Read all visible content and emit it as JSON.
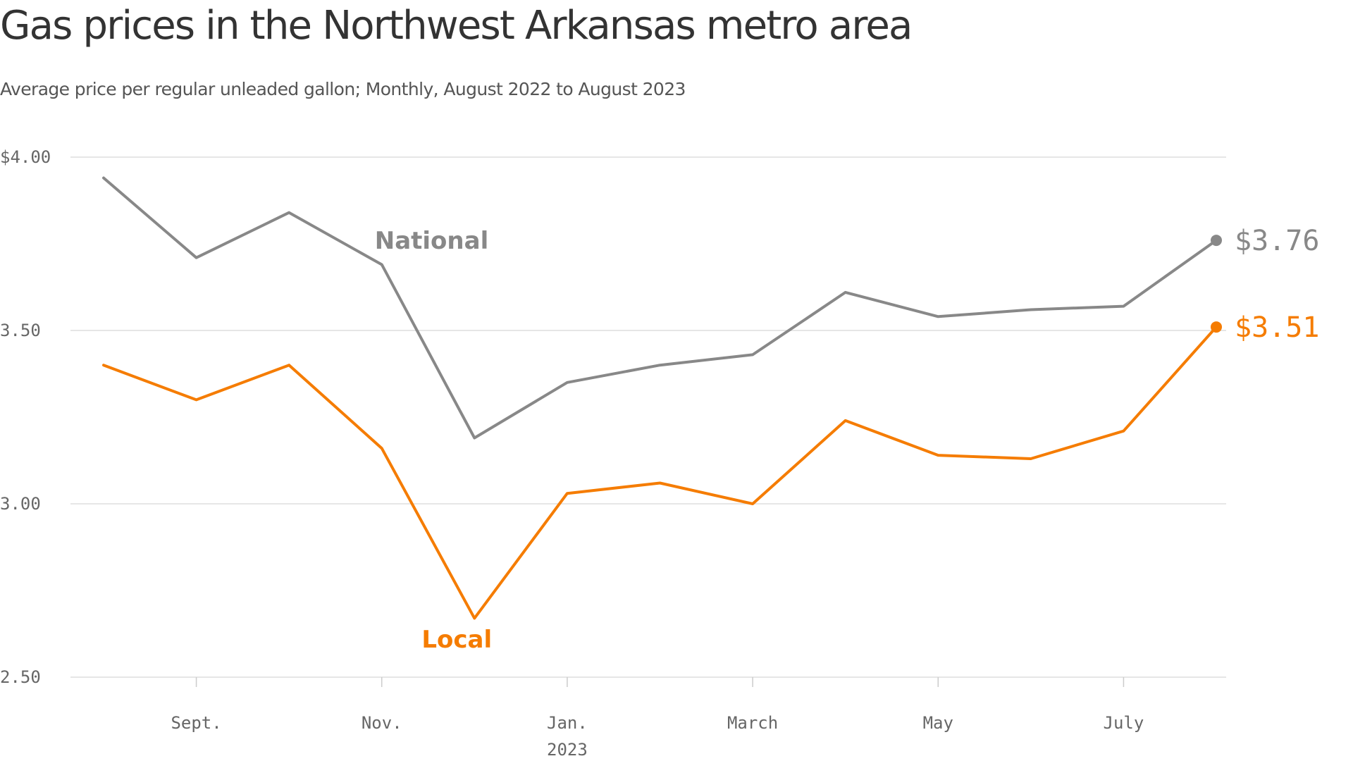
{
  "chart_data": {
    "type": "line",
    "title": "Gas prices in the Northwest Arkansas metro area",
    "subtitle": "Average price per regular unleaded gallon; Monthly, August 2022 to August 2023",
    "x": [
      "2022-08",
      "2022-09",
      "2022-10",
      "2022-11",
      "2022-12",
      "2023-01",
      "2023-02",
      "2023-03",
      "2023-04",
      "2023-05",
      "2023-06",
      "2023-07",
      "2023-08"
    ],
    "x_ticks": [
      {
        "month": "2022-09",
        "label": "Sept."
      },
      {
        "month": "2022-11",
        "label": "Nov."
      },
      {
        "month": "2023-01",
        "label": "Jan."
      },
      {
        "month": "2023-03",
        "label": "March"
      },
      {
        "month": "2023-05",
        "label": "May"
      },
      {
        "month": "2023-07",
        "label": "July"
      }
    ],
    "x_year_label": {
      "month": "2023-01",
      "label": "2023"
    },
    "y_ticks": [
      {
        "value": 4.0,
        "label": "$4.00"
      },
      {
        "value": 3.5,
        "label": "3.50"
      },
      {
        "value": 3.0,
        "label": "3.00"
      },
      {
        "value": 2.5,
        "label": "2.50"
      }
    ],
    "ylim": [
      2.5,
      4.0
    ],
    "grid": true,
    "series": [
      {
        "name": "National",
        "color": "#888888",
        "values": [
          3.94,
          3.71,
          3.84,
          3.69,
          3.19,
          3.35,
          3.4,
          3.43,
          3.61,
          3.54,
          3.56,
          3.57,
          3.76
        ],
        "end_label": "$3.76",
        "label_month": "2022-11",
        "label_value": 3.76
      },
      {
        "name": "Local",
        "color": "#f57c00",
        "values": [
          3.4,
          3.3,
          3.4,
          3.16,
          2.67,
          3.03,
          3.06,
          3.0,
          3.24,
          3.14,
          3.13,
          3.21,
          3.51
        ],
        "end_label": "$3.51",
        "label_month": "2022-12",
        "label_value": 2.61
      }
    ]
  }
}
